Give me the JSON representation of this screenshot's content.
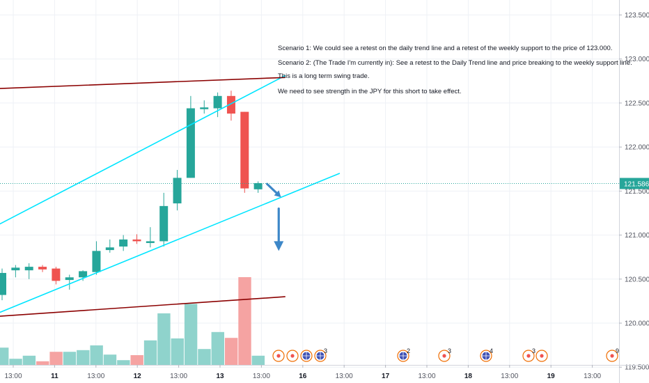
{
  "chart_data": {
    "type": "candlestick",
    "y_axis": {
      "ylim": [
        119.32,
        123.67
      ],
      "tick_labels": [
        "123.500",
        "123.000",
        "122.500",
        "122.000",
        "121.500",
        "121.000",
        "120.500",
        "120.000",
        "119.500"
      ],
      "tick_values": [
        123.5,
        123.0,
        122.5,
        122.0,
        121.5,
        121.0,
        120.5,
        120.0,
        119.5
      ],
      "current_price": "121.586",
      "current_price_value": 121.586
    },
    "x_axis": {
      "tick_labels": [
        "13:00",
        "11",
        "13:00",
        "12",
        "13:00",
        "13",
        "13:00",
        "16",
        "13:00",
        "17",
        "13:00",
        "18",
        "13:00",
        "19",
        "13:00"
      ],
      "bold_labels": [
        "11",
        "12",
        "13",
        "16",
        "17",
        "18",
        "19"
      ]
    },
    "candles": [
      {
        "o": 120.32,
        "h": 120.62,
        "l": 120.26,
        "c": 120.57
      },
      {
        "o": 120.6,
        "h": 120.66,
        "l": 120.52,
        "c": 120.63
      },
      {
        "o": 120.6,
        "h": 120.68,
        "l": 120.5,
        "c": 120.64
      },
      {
        "o": 120.64,
        "h": 120.66,
        "l": 120.58,
        "c": 120.61
      },
      {
        "o": 120.62,
        "h": 120.64,
        "l": 120.44,
        "c": 120.48
      },
      {
        "o": 120.49,
        "h": 120.55,
        "l": 120.38,
        "c": 120.52
      },
      {
        "o": 120.52,
        "h": 120.6,
        "l": 120.48,
        "c": 120.59
      },
      {
        "o": 120.58,
        "h": 120.93,
        "l": 120.55,
        "c": 120.82
      },
      {
        "o": 120.83,
        "h": 120.95,
        "l": 120.8,
        "c": 120.86
      },
      {
        "o": 120.87,
        "h": 121.0,
        "l": 120.82,
        "c": 120.95
      },
      {
        "o": 120.95,
        "h": 121.01,
        "l": 120.9,
        "c": 120.93
      },
      {
        "o": 120.91,
        "h": 121.09,
        "l": 120.86,
        "c": 120.93
      },
      {
        "o": 120.93,
        "h": 121.48,
        "l": 120.87,
        "c": 121.33
      },
      {
        "o": 121.36,
        "h": 121.74,
        "l": 121.28,
        "c": 121.65
      },
      {
        "o": 121.65,
        "h": 122.58,
        "l": 121.65,
        "c": 122.44
      },
      {
        "o": 122.43,
        "h": 122.53,
        "l": 122.38,
        "c": 122.45
      },
      {
        "o": 122.44,
        "h": 122.62,
        "l": 122.34,
        "c": 122.58
      },
      {
        "o": 122.58,
        "h": 122.64,
        "l": 122.3,
        "c": 122.38
      },
      {
        "o": 122.4,
        "h": 122.4,
        "l": 121.48,
        "c": 121.53
      },
      {
        "o": 121.52,
        "h": 121.61,
        "l": 121.48,
        "c": 121.59
      }
    ],
    "volumes": [
      0.62,
      0.22,
      0.33,
      0.13,
      0.47,
      0.47,
      0.53,
      0.7,
      0.37,
      0.17,
      0.35,
      0.88,
      1.85,
      0.95,
      2.19,
      0.57,
      1.18,
      0.97,
      3.15,
      0.33
    ],
    "trend_lines": [
      {
        "color": "#00e5ff",
        "from": {
          "i": -1.0,
          "p": 121.06
        },
        "to": {
          "i": 20.99,
          "p": 122.81
        }
      },
      {
        "color": "#00e5ff",
        "from": {
          "i": -1.0,
          "p": 120.07
        },
        "to": {
          "i": 25.03,
          "p": 121.7
        }
      },
      {
        "color": "#8b0000",
        "from": {
          "i": -1.0,
          "p": 122.66
        },
        "to": {
          "i": 20.99,
          "p": 122.79
        }
      },
      {
        "color": "#8b0000",
        "from": {
          "i": -1.0,
          "p": 120.07
        },
        "to": {
          "i": 20.99,
          "p": 120.3
        }
      }
    ],
    "arrows": [
      {
        "from": {
          "i": 19.67,
          "p": 121.58
        },
        "to": {
          "i": 20.7,
          "p": 121.43
        }
      },
      {
        "from": {
          "i": 20.53,
          "p": 121.3
        },
        "to": {
          "i": 20.53,
          "p": 120.82
        }
      }
    ],
    "annotation_lines": [
      "Scenario 1: We could see a retest on the daily trend line and a retest of the weekly support to the price of 123.000.",
      "Scenario 2: (The Trade I'm currently in): See a retest to the Daily Trend line and price breaking to the weekly support line.",
      "This is a long term swing trade.",
      "We need to see strength in the JPY for this short to take effect."
    ],
    "event_badges": [
      {
        "label": "",
        "kind": "dot",
        "group": 1
      },
      {
        "label": "",
        "kind": "dot",
        "group": 1
      },
      {
        "label": "",
        "kind": "globe",
        "group": 1
      },
      {
        "label": "3",
        "kind": "globe",
        "group": 1
      },
      {
        "label": "2",
        "kind": "globe",
        "group": 2
      },
      {
        "label": "3",
        "kind": "dot-outline",
        "group": 3
      },
      {
        "label": "4",
        "kind": "globe",
        "group": 4
      },
      {
        "label": "3",
        "kind": "dot-outline",
        "group": 5
      },
      {
        "label": "",
        "kind": "dot",
        "group": 5
      },
      {
        "label": "9",
        "kind": "dot",
        "group": 6
      }
    ]
  },
  "colors": {
    "bull": "#26a69a",
    "bear": "#ef5350",
    "vol_bull": "#8fd3cc",
    "vol_bear": "#f5a3a2",
    "cyan": "#00e5ff",
    "maroon": "#8b0000",
    "arrow": "#3d87c8",
    "grid": "#eef1f6",
    "price_line": "#26a69a",
    "price_label_bg": "#26a69a"
  }
}
